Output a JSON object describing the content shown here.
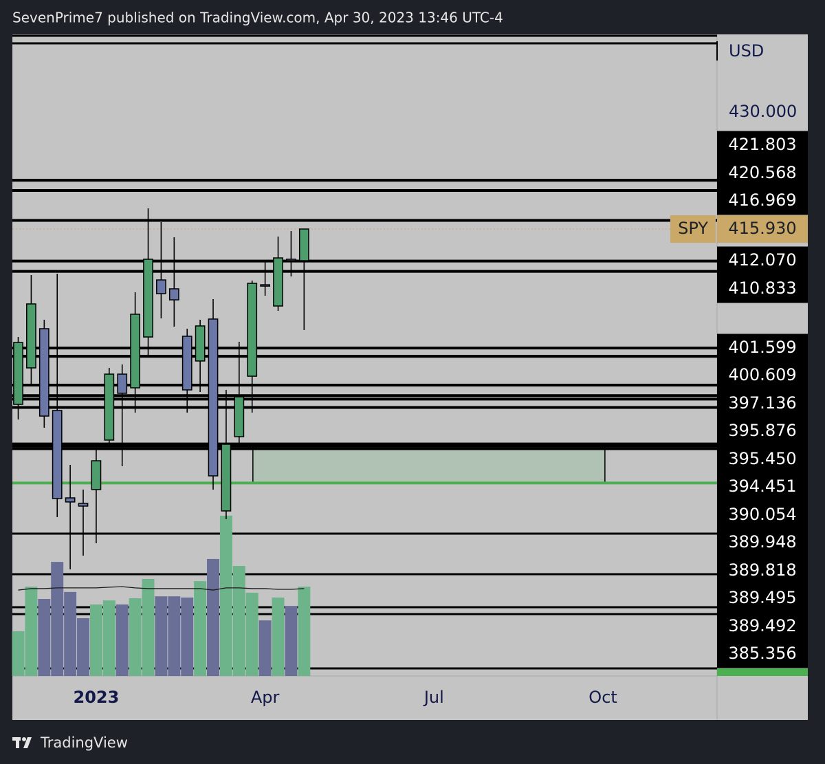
{
  "header": "SevenPrime7 published on TradingView.com, Apr 30, 2023 13:46 UTC-4",
  "footer": "TradingView",
  "chart_data": {
    "type": "candlestick",
    "symbol": "SPY",
    "currency": "USD",
    "last": {
      "value": 415.93,
      "label": "415.930"
    },
    "x": [
      0,
      1,
      2,
      3,
      4,
      5,
      6,
      7,
      8,
      9,
      10,
      11,
      12,
      13,
      14,
      15,
      16,
      17,
      18,
      19,
      20,
      21,
      22
    ],
    "open": [
      394.82,
      399.21,
      403.93,
      394.08,
      383.56,
      382.9,
      384.56,
      390.52,
      398.46,
      396.81,
      402.93,
      409.8,
      408.73,
      403.02,
      400.04,
      405.09,
      381.99,
      390.93,
      398.21,
      409.22,
      406.66,
      412.29,
      412.12
    ],
    "high": [
      402.93,
      410.38,
      405.0,
      410.55,
      387.54,
      384.56,
      389.52,
      399.21,
      399.62,
      408.31,
      418.41,
      416.76,
      414.94,
      403.93,
      405.0,
      407.49,
      396.56,
      402.35,
      409.72,
      412.04,
      415.02,
      415.68,
      415.93
    ],
    "low": [
      393.0,
      397.14,
      392.01,
      381.24,
      374.95,
      376.61,
      378.1,
      389.69,
      387.37,
      393.83,
      400.45,
      405.17,
      404.18,
      393.83,
      396.31,
      384.56,
      381.0,
      389.69,
      393.83,
      407.9,
      406.08,
      410.22,
      403.76
    ],
    "close": [
      402.27,
      406.91,
      393.41,
      383.48,
      383.07,
      382.57,
      388.03,
      398.46,
      396.15,
      405.67,
      412.29,
      408.15,
      407.4,
      396.56,
      404.26,
      386.21,
      390.02,
      395.73,
      409.39,
      409.06,
      412.45,
      412.12,
      415.93
    ],
    "volume": [
      186,
      371,
      320,
      474,
      349,
      240,
      297,
      314,
      297,
      323,
      403,
      331,
      331,
      326,
      394,
      486,
      666,
      457,
      346,
      231,
      326,
      291,
      371
    ],
    "volume_ma": [
      357,
      363,
      363,
      366,
      366,
      366,
      366,
      369,
      371,
      366,
      363,
      363,
      363,
      363,
      363,
      357,
      366,
      366,
      363,
      363,
      360,
      360,
      363
    ],
    "vollim": [
      0,
      1000
    ],
    "up_color": "#4d9e6c",
    "down_color": "#6b77a6",
    "up_volume_color": "#6db48a",
    "down_volume_color": "#6a6f98",
    "levels": [
      {
        "value": 421.803,
        "label": "421.803",
        "color": "#000000"
      },
      {
        "value": 420.568,
        "label": "420.568",
        "color": "#000000"
      },
      {
        "value": 416.969,
        "label": "416.969",
        "color": "#000000"
      },
      {
        "value": 412.07,
        "label": "412.070",
        "color": "#000000"
      },
      {
        "value": 410.833,
        "label": "410.833",
        "color": "#000000"
      },
      {
        "value": 401.599,
        "label": "401.599",
        "color": "#000000"
      },
      {
        "value": 400.609,
        "label": "400.609",
        "color": "#000000"
      },
      {
        "value": 397.136,
        "label": "397.136",
        "color": "#000000"
      },
      {
        "value": 395.876,
        "label": "395.876",
        "color": "#000000"
      },
      {
        "value": 395.45,
        "label": "395.450",
        "color": "#000000"
      },
      {
        "value": 394.451,
        "label": "394.451",
        "color": "#000000"
      },
      {
        "value": 390.054,
        "label": "390.054",
        "color": "#000000"
      },
      {
        "value": 389.948,
        "label": "389.948",
        "color": "#000000"
      },
      {
        "value": 389.818,
        "label": "389.818",
        "color": "#000000"
      },
      {
        "value": 389.495,
        "label": "389.495",
        "color": "#000000"
      },
      {
        "value": 389.492,
        "label": "389.492",
        "color": "#000000"
      },
      {
        "value": 385.356,
        "label": "385.356",
        "color": "#4caf50"
      }
    ],
    "zone": {
      "top": 390.054,
      "bottom": 385.356,
      "xstart": 18.06,
      "xend": 45.15,
      "color": "#a6c2ac"
    },
    "xlim": [
      -0.45,
      53.78
    ],
    "xticks": [
      {
        "value": 6,
        "label": "2023"
      },
      {
        "value": 19,
        "label": "Apr"
      },
      {
        "value": 32,
        "label": "Jul"
      },
      {
        "value": 45,
        "label": "Oct"
      }
    ],
    "ylim": [
      362.12,
      439.36
    ],
    "yticks": [
      {
        "value": 430,
        "label": "430.000"
      }
    ]
  }
}
